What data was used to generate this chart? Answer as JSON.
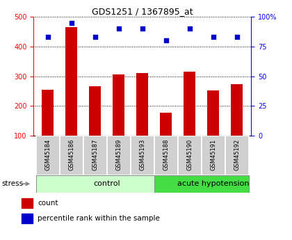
{
  "title": "GDS1251 / 1367895_at",
  "samples": [
    "GSM45184",
    "GSM45186",
    "GSM45187",
    "GSM45189",
    "GSM45193",
    "GSM45188",
    "GSM45190",
    "GSM45191",
    "GSM45192"
  ],
  "counts": [
    255,
    465,
    265,
    305,
    310,
    178,
    315,
    253,
    273
  ],
  "percentiles": [
    83,
    95,
    83,
    90,
    90,
    80,
    90,
    83,
    83
  ],
  "groups": [
    {
      "label": "control",
      "start": 0,
      "end": 5,
      "color": "#ccffcc",
      "edge_color": "#888888"
    },
    {
      "label": "acute hypotension",
      "start": 5,
      "end": 9,
      "color": "#44dd44",
      "edge_color": "#888888"
    }
  ],
  "bar_color": "#cc0000",
  "dot_color": "#0000cc",
  "ylim_left": [
    100,
    500
  ],
  "ylim_right": [
    0,
    100
  ],
  "ylabel_left_ticks": [
    100,
    200,
    300,
    400,
    500
  ],
  "ylabel_right_ticks": [
    0,
    25,
    50,
    75,
    100
  ],
  "stress_label": "stress",
  "legend_count": "count",
  "legend_percentile": "percentile rank within the sample",
  "bar_width": 0.5,
  "sample_box_color": "#d0d0d0",
  "title_fontsize": 9,
  "tick_fontsize": 7,
  "label_fontsize": 6,
  "group_fontsize": 8
}
